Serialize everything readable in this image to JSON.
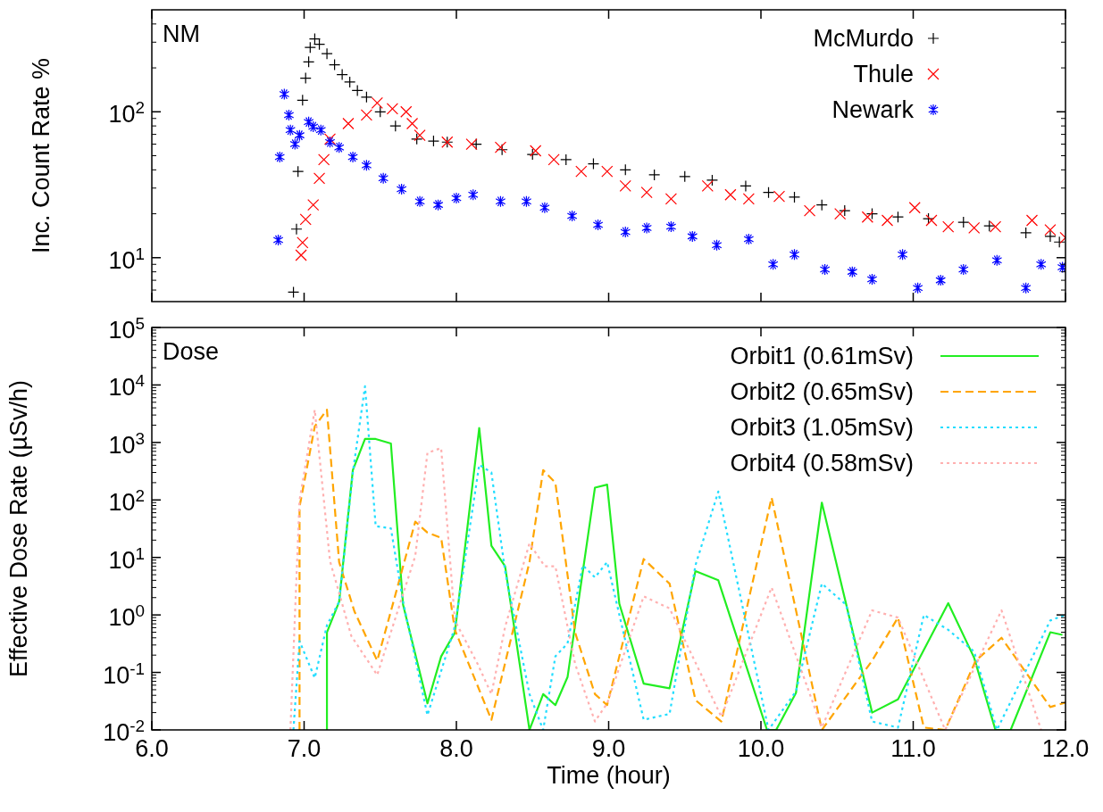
{
  "chart_data": [
    {
      "type": "scatter",
      "ylabel": "Inc. Count Rate %",
      "annotations": [
        "NM"
      ],
      "log": true,
      "legend": "top right",
      "tick_labels": "y",
      "xlim": [
        6,
        12
      ],
      "xticks": [
        6,
        7,
        8,
        9,
        10,
        11,
        12
      ],
      "ylim": [
        5,
        500
      ],
      "yticks": [
        {
          "value": 10,
          "label": "10$^{1}$"
        },
        {
          "value": 100,
          "label": "10$^{2}$"
        }
      ],
      "series": [
        {
          "name": "McMurdo",
          "color": "#000000",
          "marker": "plus",
          "x": [
            6.93,
            6.95,
            6.96,
            6.99,
            7.01,
            7.03,
            7.04,
            7.07,
            7.1,
            7.15,
            7.2,
            7.25,
            7.3,
            7.35,
            7.41,
            7.5,
            7.6,
            7.74,
            7.85,
            7.94,
            8.13,
            8.3,
            8.5,
            8.72,
            8.9,
            9.11,
            9.3,
            9.5,
            9.68,
            9.9,
            10.05,
            10.22,
            10.4,
            10.55,
            10.73,
            10.9,
            11.1,
            11.33,
            11.5,
            11.74,
            11.9,
            11.96
          ],
          "values": [
            5.8,
            15.7,
            39,
            120,
            170,
            220,
            276,
            316,
            290,
            250,
            210,
            180,
            160,
            140,
            126,
            100,
            80,
            65,
            63,
            62,
            60,
            55,
            51,
            47,
            44,
            40,
            37,
            36,
            34,
            31,
            28,
            26,
            23,
            21,
            20,
            19,
            18.5,
            17.5,
            16.5,
            14.8,
            14,
            12.8
          ]
        },
        {
          "name": "Thule",
          "color": "#ff0000",
          "marker": "cross",
          "x": [
            6.98,
            6.99,
            7.01,
            7.06,
            7.1,
            7.13,
            7.17,
            7.29,
            7.41,
            7.48,
            7.58,
            7.67,
            7.71,
            7.76,
            7.94,
            8.1,
            8.29,
            8.52,
            8.64,
            8.82,
            8.99,
            9.11,
            9.25,
            9.41,
            9.65,
            9.8,
            9.92,
            10.12,
            10.32,
            10.52,
            10.7,
            10.83,
            11.01,
            11.12,
            11.23,
            11.4,
            11.54,
            11.78,
            11.9,
            12.0
          ],
          "values": [
            10.4,
            12.7,
            18.3,
            23,
            35,
            47,
            65,
            83,
            95,
            115,
            105,
            100,
            83,
            69,
            62,
            60,
            57,
            54,
            47,
            39,
            39,
            31,
            28,
            25.3,
            31,
            27,
            25.3,
            26.3,
            21,
            20,
            19,
            18,
            22,
            18,
            16.3,
            16,
            16.3,
            18,
            15.5,
            13.7
          ]
        },
        {
          "name": "Newark",
          "color": "#0000ff",
          "x": [
            6.83,
            6.84,
            6.87,
            6.9,
            6.91,
            6.94,
            6.97,
            7.03,
            7.06,
            7.11,
            7.17,
            7.23,
            7.32,
            7.41,
            7.52,
            7.64,
            7.76,
            7.88,
            8.0,
            8.11,
            8.29,
            8.46,
            8.58,
            8.76,
            8.93,
            9.11,
            9.25,
            9.41,
            9.55,
            9.71,
            9.92,
            10.08,
            10.22,
            10.42,
            10.6,
            10.73,
            10.93,
            11.03,
            11.18,
            11.33,
            11.55,
            11.74,
            11.84,
            11.98
          ],
          "values": [
            13.2,
            49,
            132,
            95,
            75,
            60,
            69,
            85,
            79,
            75,
            62,
            57,
            49,
            43,
            35,
            29.5,
            24.3,
            23,
            25.6,
            27,
            24.3,
            24.3,
            22,
            19.3,
            16.8,
            15,
            16,
            16.3,
            14,
            12.2,
            13.4,
            9,
            10.5,
            8.3,
            8,
            7.1,
            10.5,
            6.2,
            7,
            8.3,
            9.6,
            6.2,
            9,
            8.6
          ]
        }
      ]
    },
    {
      "type": "line",
      "xlabel": "Time (hour)",
      "ylabel": "Effective Dose Rate (µSv/h)",
      "annotations": [
        "Dose"
      ],
      "log": true,
      "legend": "top right",
      "xlim": [
        6,
        12
      ],
      "xticks": [
        {
          "value": 6,
          "label": "6.0"
        },
        {
          "value": 7,
          "label": "7.0"
        },
        {
          "value": 8,
          "label": "8.0"
        },
        {
          "value": 9,
          "label": "9.0"
        },
        {
          "value": 10,
          "label": "10.0"
        },
        {
          "value": 11,
          "label": "11.0"
        },
        {
          "value": 12,
          "label": "12.0"
        }
      ],
      "ylim": [
        0.01,
        100000
      ],
      "yticks": [
        {
          "value": 0.01,
          "label": "10$^{-2}$"
        },
        {
          "value": 0.1,
          "label": "10$^{-1}$"
        },
        {
          "value": 1,
          "label": "10$^{0}$"
        },
        {
          "value": 10,
          "label": "10$^{1}$"
        },
        {
          "value": 100,
          "label": "10$^{2}$"
        },
        {
          "value": 1000,
          "label": "10$^{3}$"
        },
        {
          "value": 10000,
          "label": "10$^{4}$"
        },
        {
          "value": 100000,
          "label": "10$^{5}$"
        }
      ],
      "series": [
        {
          "name": "Orbit1 (0.61mSv)",
          "color": "#22ee22",
          "line_style": "solid",
          "x": [
            7.15,
            7.15,
            7.23,
            7.32,
            7.4,
            7.47,
            7.57,
            7.65,
            7.81,
            7.9,
            7.99,
            8.15,
            8.23,
            8.32,
            8.48,
            8.57,
            8.65,
            8.73,
            8.91,
            8.99,
            9.07,
            9.23,
            9.4,
            9.57,
            9.72,
            10.04,
            10.1,
            10.23,
            10.4,
            10.73,
            10.9,
            11.23,
            11.4,
            11.54,
            11.64,
            11.9,
            11.98
          ],
          "values": [
            0.01,
            0.5,
            1.7,
            330,
            1150,
            1150,
            960,
            1.5,
            0.029,
            0.19,
            0.49,
            1780,
            16,
            7,
            0.01,
            0.042,
            0.027,
            0.083,
            164,
            185,
            1.57,
            0.064,
            0.053,
            5.8,
            4,
            0.01,
            0.01,
            0.044,
            90,
            0.02,
            0.034,
            1.6,
            0.18,
            0.01,
            0.01,
            0.5,
            0.45
          ]
        },
        {
          "name": "Orbit2 (0.65mSv)",
          "color": "#ffa500",
          "line_style": "dashed",
          "x": [
            6.97,
            6.97,
            7.07,
            7.15,
            7.23,
            7.33,
            7.48,
            7.57,
            7.73,
            7.81,
            7.9,
            7.99,
            8.23,
            8.48,
            8.57,
            8.65,
            8.78,
            8.91,
            8.99,
            9.23,
            9.4,
            9.57,
            9.74,
            10.07,
            10.4,
            10.73,
            10.9,
            11.07,
            11.21,
            11.41,
            11.58,
            11.9,
            12.0
          ],
          "values": [
            0.01,
            76,
            1900,
            3700,
            8.3,
            1.16,
            0.16,
            1.16,
            42,
            27,
            22,
            0.55,
            0.015,
            8.3,
            330,
            200,
            0.49,
            0.042,
            0.027,
            9.4,
            3.5,
            0.033,
            0.014,
            110,
            0.01,
            0.16,
            0.9,
            0.011,
            0.01,
            0.16,
            0.4,
            0.025,
            0.03
          ]
        },
        {
          "name": "Orbit3 (1.05mSv)",
          "color": "#22ddff",
          "line_style": "dotted",
          "x": [
            6.93,
            6.97,
            7.07,
            7.15,
            7.23,
            7.32,
            7.4,
            7.47,
            7.57,
            7.65,
            7.81,
            7.99,
            8.15,
            8.23,
            8.32,
            8.48,
            8.57,
            8.65,
            8.73,
            8.83,
            8.91,
            8.99,
            9.23,
            9.4,
            9.57,
            9.72,
            10.05,
            10.23,
            10.4,
            10.56,
            10.73,
            10.9,
            11.07,
            11.23,
            11.4,
            11.55,
            11.9,
            12.0
          ],
          "values": [
            0.01,
            0.35,
            0.08,
            0.66,
            1.7,
            300,
            9500,
            35,
            32,
            1.7,
            0.018,
            0.62,
            410,
            300,
            5.8,
            0.042,
            0.01,
            0.19,
            0.32,
            7.3,
            4.5,
            8.3,
            0.015,
            0.019,
            7.3,
            140,
            0.01,
            0.047,
            3.5,
            1.5,
            0.014,
            0.011,
            1.0,
            0.55,
            0.23,
            0.01,
            0.8,
            1.0
          ]
        },
        {
          "name": "Orbit4 (0.58mSv)",
          "color": "#ffb0b0",
          "line_style": "dotted",
          "x": [
            6.91,
            6.97,
            7.07,
            7.17,
            7.31,
            7.48,
            7.73,
            7.81,
            7.9,
            7.99,
            8.14,
            8.23,
            8.32,
            8.48,
            8.58,
            8.65,
            8.78,
            8.91,
            8.99,
            9.23,
            9.4,
            9.74,
            10.07,
            10.4,
            10.73,
            10.9,
            11.21,
            11.58,
            11.84
          ],
          "values": [
            0.01,
            98,
            3700,
            8.7,
            0.43,
            0.09,
            10.6,
            660,
            800,
            0.8,
            0.14,
            0.042,
            0.62,
            17.6,
            7,
            7,
            0.14,
            0.014,
            0.029,
            2.1,
            1.3,
            0.017,
            3,
            0.011,
            1.2,
            0.9,
            0.01,
            1.2,
            0.01
          ]
        }
      ]
    }
  ]
}
